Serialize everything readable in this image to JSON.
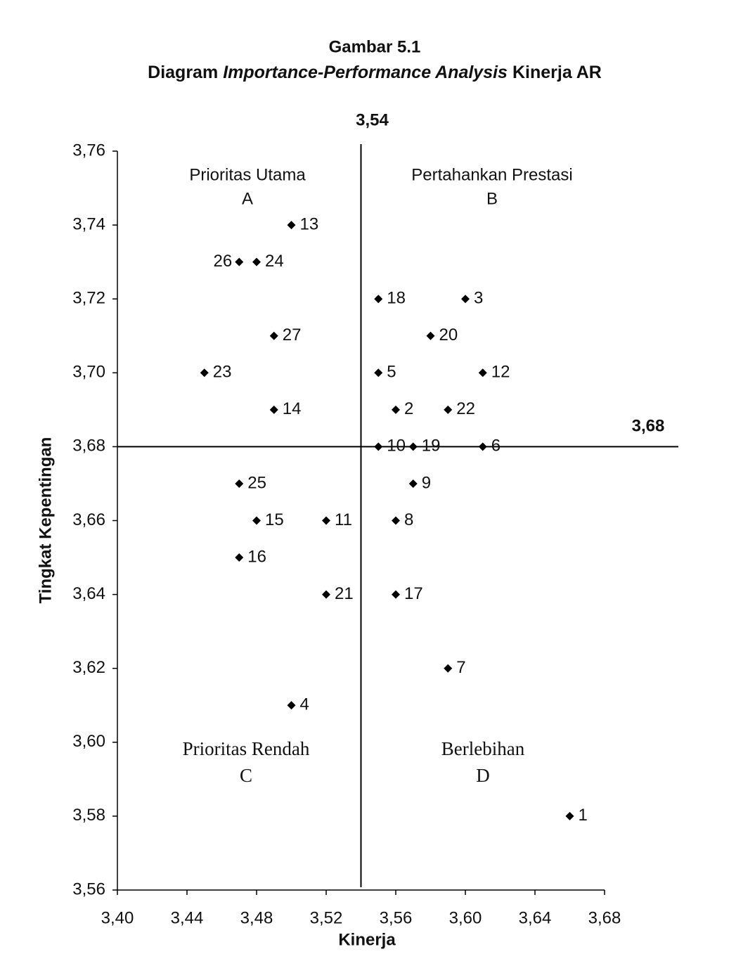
{
  "chart_data": {
    "type": "scatter",
    "title": "Gambar 5.1",
    "subtitle": [
      "Diagram",
      "Importance-Performance Analysis",
      "Kinerja AR"
    ],
    "xlabel": "Kinerja",
    "ylabel": "Tingkat Kepentingan",
    "xlim": [
      3.4,
      3.68
    ],
    "ylim": [
      3.56,
      3.76
    ],
    "xticks": [
      {
        "value": 3.4,
        "label": "3,40"
      },
      {
        "value": 3.44,
        "label": "3,44"
      },
      {
        "value": 3.48,
        "label": "3,48"
      },
      {
        "value": 3.52,
        "label": "3,52"
      },
      {
        "value": 3.56,
        "label": "3,56"
      },
      {
        "value": 3.6,
        "label": "3,60"
      },
      {
        "value": 3.64,
        "label": "3,64"
      },
      {
        "value": 3.68,
        "label": "3,68"
      }
    ],
    "yticks": [
      {
        "value": 3.56,
        "label": "3,56"
      },
      {
        "value": 3.58,
        "label": "3,58"
      },
      {
        "value": 3.6,
        "label": "3,60"
      },
      {
        "value": 3.62,
        "label": "3,62"
      },
      {
        "value": 3.64,
        "label": "3,64"
      },
      {
        "value": 3.66,
        "label": "3,66"
      },
      {
        "value": 3.68,
        "label": "3,68"
      },
      {
        "value": 3.7,
        "label": "3,70"
      },
      {
        "value": 3.72,
        "label": "3,72"
      },
      {
        "value": 3.74,
        "label": "3,74"
      },
      {
        "value": 3.76,
        "label": "3,76"
      }
    ],
    "thresholds": {
      "x": {
        "value": 3.54,
        "label": "3,54"
      },
      "y": {
        "value": 3.68,
        "label": "3,68"
      }
    },
    "quadrants": [
      {
        "name": "Prioritas Utama",
        "letter": "A"
      },
      {
        "name": "Pertahankan Prestasi",
        "letter": "B"
      },
      {
        "name": "Prioritas Rendah",
        "letter": "C"
      },
      {
        "name": "Berlebihan",
        "letter": "D"
      }
    ],
    "series": [
      {
        "color": "#000000",
        "labels": [
          "13",
          "26",
          "24",
          "18",
          "3",
          "27",
          "20",
          "23",
          "5",
          "12",
          "14",
          "2",
          "22",
          "10",
          "19",
          "6",
          "25",
          "9",
          "15",
          "11",
          "8",
          "16",
          "21",
          "17",
          "7",
          "4",
          "1"
        ],
        "x": [
          3.5,
          3.47,
          3.48,
          3.55,
          3.6,
          3.49,
          3.58,
          3.45,
          3.55,
          3.61,
          3.49,
          3.56,
          3.59,
          3.55,
          3.57,
          3.61,
          3.47,
          3.57,
          3.48,
          3.52,
          3.56,
          3.47,
          3.52,
          3.56,
          3.59,
          3.5,
          3.66
        ],
        "values": [
          3.74,
          3.73,
          3.73,
          3.72,
          3.72,
          3.71,
          3.71,
          3.7,
          3.7,
          3.7,
          3.69,
          3.69,
          3.69,
          3.68,
          3.68,
          3.68,
          3.67,
          3.67,
          3.66,
          3.66,
          3.66,
          3.65,
          3.64,
          3.64,
          3.62,
          3.61,
          3.58
        ]
      }
    ]
  }
}
